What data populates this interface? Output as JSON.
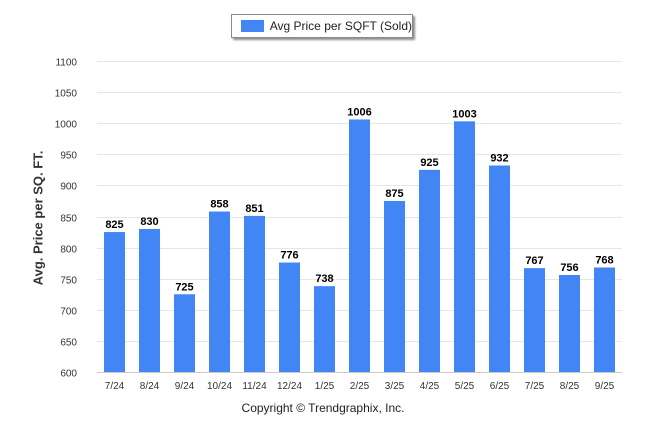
{
  "chart_data": {
    "type": "bar",
    "title": "",
    "xlabel": "",
    "ylabel": "Avg. Price per SQ. FT.",
    "legend": [
      "Avg Price per SQFT (Sold)"
    ],
    "legend_position": "top-center",
    "categories": [
      "7/24",
      "8/24",
      "9/24",
      "10/24",
      "11/24",
      "12/24",
      "1/25",
      "2/25",
      "3/25",
      "4/25",
      "5/25",
      "6/25",
      "7/25",
      "8/25",
      "9/25"
    ],
    "series": [
      {
        "name": "Avg Price per SQFT (Sold)",
        "values": [
          825,
          830,
          725,
          858,
          851,
          776,
          738,
          1006,
          875,
          925,
          1003,
          932,
          767,
          756,
          768
        ]
      }
    ],
    "ylim": [
      600,
      1100
    ],
    "yticks": [
      600,
      650,
      700,
      750,
      800,
      850,
      900,
      950,
      1000,
      1050,
      1100
    ],
    "grid": true,
    "data_labels": true
  },
  "colors": {
    "bar": "#4285f4",
    "grid": "#e6e6e6",
    "axis_text": "#333333"
  },
  "footer": "Copyright © Trendgraphix, Inc."
}
